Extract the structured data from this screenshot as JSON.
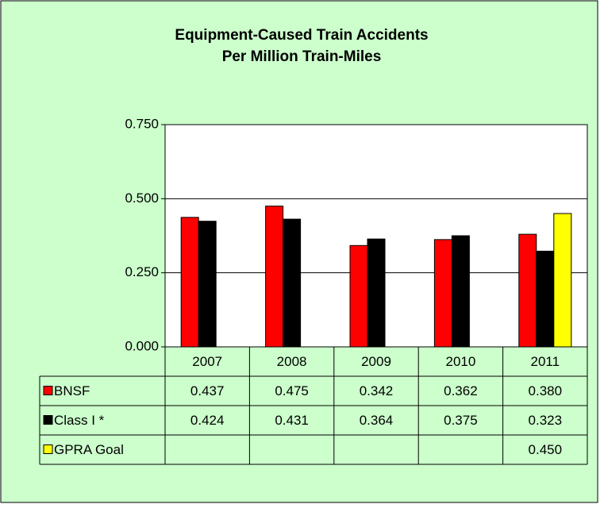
{
  "chart_data": {
    "type": "bar",
    "title": [
      "Equipment-Caused Train Accidents",
      "Per Million Train-Miles"
    ],
    "categories": [
      "2007",
      "2008",
      "2009",
      "2010",
      "2011"
    ],
    "series": [
      {
        "name": "BNSF",
        "color": "#ff0000",
        "values": [
          0.437,
          0.475,
          0.342,
          0.362,
          0.38
        ],
        "value_labels": [
          "0.437",
          "0.475",
          "0.342",
          "0.362",
          "0.380"
        ]
      },
      {
        "name": "Class I *",
        "color": "#000000",
        "values": [
          0.424,
          0.431,
          0.364,
          0.375,
          0.323
        ],
        "value_labels": [
          "0.424",
          "0.431",
          "0.364",
          "0.375",
          "0.323"
        ]
      },
      {
        "name": "GPRA Goal",
        "color": "#ffff00",
        "values": [
          null,
          null,
          null,
          null,
          0.45
        ],
        "value_labels": [
          null,
          null,
          null,
          null,
          "0.450"
        ]
      }
    ],
    "ylim": [
      0,
      0.75
    ],
    "yticks": [
      {
        "value": 0,
        "label": "0.000"
      },
      {
        "value": 0.25,
        "label": "0.250"
      },
      {
        "value": 0.5,
        "label": "0.500"
      },
      {
        "value": 0.75,
        "label": "0.750"
      }
    ],
    "grid": true
  }
}
